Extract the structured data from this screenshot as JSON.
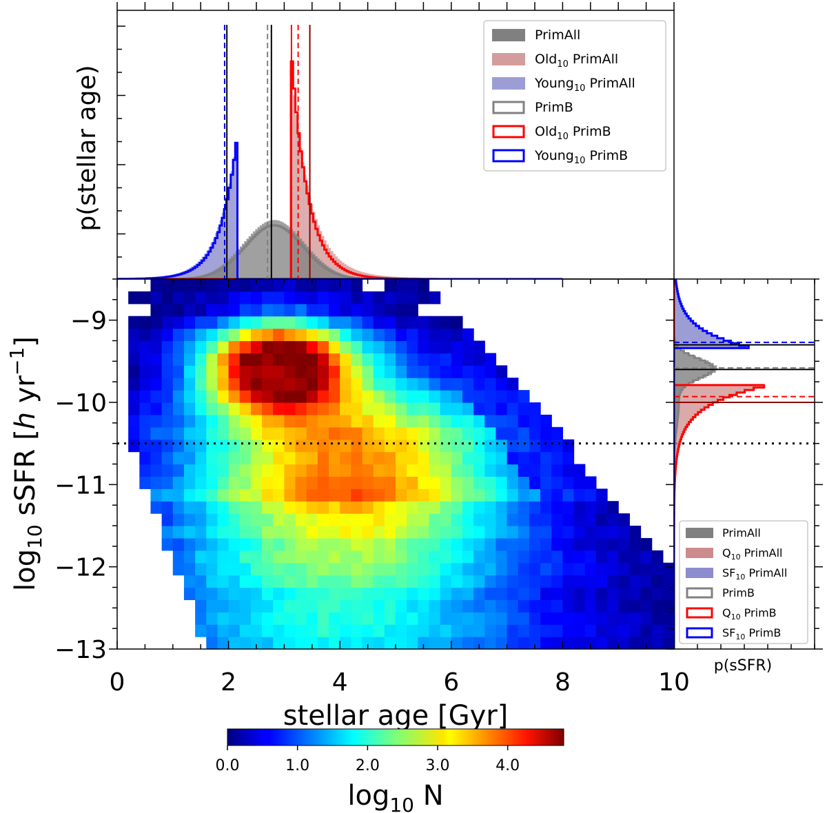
{
  "chart_data": [
    {
      "type": "heatmap",
      "xlabel": "stellar age [Gyr]",
      "ylabel_parts": [
        "log",
        "10",
        " sSFR [",
        "h",
        " yr",
        "−1",
        "]"
      ],
      "xlim": [
        0,
        10
      ],
      "ylim": [
        -13,
        -8.5
      ],
      "xticks": [
        0,
        2,
        4,
        6,
        8,
        10
      ],
      "xtick_labels": [
        "0",
        "2",
        "4",
        "6",
        "8",
        "10"
      ],
      "yticks": [
        -9,
        -10,
        -11,
        -12,
        -13
      ],
      "ytick_labels": [
        "−9",
        "−10",
        "−11",
        "−12",
        "−13"
      ],
      "bin_width_x": 0.2,
      "bin_width_y": 0.15,
      "peak": {
        "age": 2.9,
        "log_ssfr": -9.55,
        "log10_N": 4.8
      },
      "quench_threshold_log_ssfr": -10.5,
      "colormap": "jet",
      "colorbar": {
        "label_parts": [
          "log",
          "10",
          " N"
        ],
        "range": [
          0,
          4.8
        ],
        "ticks": [
          0.0,
          1.0,
          2.0,
          3.0,
          4.0
        ],
        "tick_labels": [
          "0.0",
          "1.0",
          "2.0",
          "3.0",
          "4.0"
        ]
      }
    },
    {
      "type": "histogram",
      "panel": "top",
      "ylabel": "p(stellar age)",
      "series": [
        {
          "key": "primall",
          "label_parts": [
            "PrimAll",
            "",
            ""
          ],
          "color": "#808080",
          "style": "filled",
          "median_age": 2.75,
          "peak_age": 2.8,
          "peak_density": 0.22
        },
        {
          "key": "old_primall",
          "label_parts": [
            "Old",
            "10",
            " PrimAll"
          ],
          "color": "#cd8c8c",
          "style": "filled",
          "peak_age": 3.2,
          "peak_density": 0.8
        },
        {
          "key": "young_primall",
          "label_parts": [
            "Young",
            "10",
            " PrimAll"
          ],
          "color": "#8c8cce",
          "style": "filled",
          "peak_age": 2.1,
          "peak_density": 0.56
        },
        {
          "key": "primb",
          "label_parts": [
            "PrimB",
            "",
            ""
          ],
          "color": "#808080",
          "style": "step",
          "median_age": 2.7
        },
        {
          "key": "old_primb",
          "label_parts": [
            "Old",
            "10",
            " PrimB"
          ],
          "color": "#ff0000",
          "style": "step",
          "median_age": 3.25,
          "peak_age": 3.15,
          "peak_density": 0.81
        },
        {
          "key": "young_primb",
          "label_parts": [
            "Young",
            "10",
            " PrimB"
          ],
          "color": "#0000ff",
          "style": "step",
          "median_age": 1.93,
          "peak_age": 2.15,
          "peak_density": 0.56
        }
      ],
      "vlines": [
        {
          "x": 1.93,
          "color": "#0000ff",
          "dash": true
        },
        {
          "x": 1.97,
          "color": "#000000",
          "dash": false
        },
        {
          "x": 2.7,
          "color": "#808080",
          "dash": true
        },
        {
          "x": 2.77,
          "color": "#000000",
          "dash": false
        },
        {
          "x": 3.25,
          "color": "#ff0000",
          "dash": true
        },
        {
          "x": 3.13,
          "color": "#ff0000",
          "dash": false
        },
        {
          "x": 3.46,
          "color": "#8b0000",
          "dash": false
        }
      ]
    },
    {
      "type": "histogram",
      "panel": "right",
      "xlabel": "p(sSFR)",
      "series": [
        {
          "key": "primall",
          "label_parts": [
            "PrimAll",
            "",
            ""
          ],
          "color": "#808080",
          "style": "filled",
          "peak_log_ssfr": -9.6
        },
        {
          "key": "q_primall",
          "label_parts": [
            "Q",
            "10",
            " PrimAll"
          ],
          "color": "#cd8c8c",
          "style": "filled",
          "peak_log_ssfr": -9.8
        },
        {
          "key": "sf_primall",
          "label_parts": [
            "SF",
            "10",
            " PrimAll"
          ],
          "color": "#8c8cce",
          "style": "filled",
          "peak_log_ssfr": -9.3
        },
        {
          "key": "primb",
          "label_parts": [
            "PrimB",
            "",
            ""
          ],
          "color": "#808080",
          "style": "step"
        },
        {
          "key": "q_primb",
          "label_parts": [
            "Q",
            "10",
            " PrimB"
          ],
          "color": "#ff0000",
          "style": "step",
          "peak_log_ssfr": -9.8
        },
        {
          "key": "sf_primb",
          "label_parts": [
            "SF",
            "10",
            " PrimB"
          ],
          "color": "#0000ff",
          "style": "step",
          "peak_log_ssfr": -9.35
        }
      ],
      "hlines": [
        {
          "y": -9.27,
          "color": "#0000ff",
          "dash": true
        },
        {
          "y": -9.3,
          "color": "#000000",
          "dash": false
        },
        {
          "y": -9.58,
          "color": "#808080",
          "dash": true
        },
        {
          "y": -9.6,
          "color": "#000000",
          "dash": false
        },
        {
          "y": -9.93,
          "color": "#ff0000",
          "dash": true
        },
        {
          "y": -10.0,
          "color": "#8b0000",
          "dash": false
        }
      ]
    }
  ]
}
